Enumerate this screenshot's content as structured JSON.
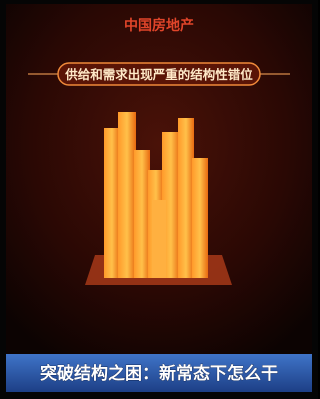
{
  "header": {
    "title": "中国房地产"
  },
  "banner": {
    "text": "供给和需求出现严重的结构性错位"
  },
  "caption": {
    "text": "突破结构之困：新常态下怎么干"
  }
}
